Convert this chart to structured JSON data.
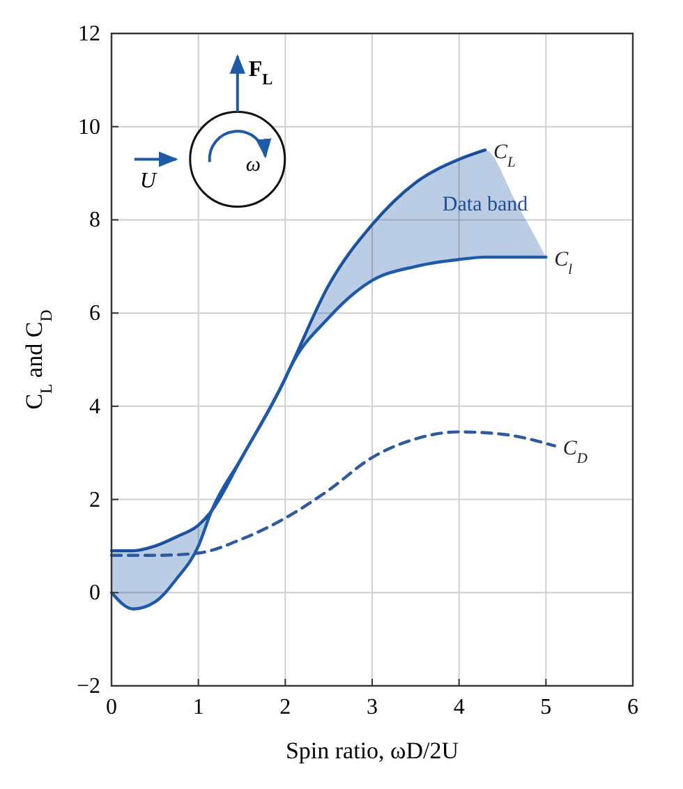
{
  "chart_data": {
    "type": "line",
    "xlabel": "Spin ratio, ωD/2U",
    "ylabel": "C$_{L}$ and C$_{D}$",
    "xlim": [
      0,
      6
    ],
    "xticks": [
      0,
      1,
      2,
      3,
      4,
      5,
      6
    ],
    "ylim": [
      -2,
      12
    ],
    "yticks": [
      {
        "value": -2,
        "label": "−2"
      },
      0,
      2,
      4,
      6,
      8,
      10,
      12
    ],
    "grid": true,
    "series": [
      {
        "name": "C$_{L}$",
        "color": "#1f5aa8",
        "line_style": "solid",
        "x": [
          0,
          0.25,
          0.5,
          0.75,
          1,
          1.15,
          1.5,
          2,
          2.05,
          2.5,
          3,
          3.5,
          4,
          4.3
        ],
        "values": [
          0.9,
          0.9,
          1.0,
          1.2,
          1.45,
          1.75,
          2.9,
          4.6,
          4.8,
          6.6,
          7.9,
          8.8,
          9.3,
          9.5
        ]
      },
      {
        "name": "C$_{l}$",
        "color": "#1f5aa8",
        "line_style": "solid",
        "x": [
          0,
          0.25,
          0.5,
          0.75,
          1,
          1.15,
          1.5,
          2,
          2.05,
          2.5,
          3,
          3.5,
          4,
          4.3,
          4.65,
          5
        ],
        "values": [
          0,
          -0.35,
          -0.2,
          0.3,
          1.0,
          1.75,
          2.9,
          4.6,
          4.8,
          5.9,
          6.7,
          7.0,
          7.15,
          7.2,
          7.2,
          7.2
        ],
        "lower": [
          0,
          -0.35,
          -0.2,
          0.3,
          1.0,
          1.75,
          2.9,
          4.6,
          4.8,
          5.9,
          6.7,
          7.0,
          7.15,
          7.2,
          7.2,
          7.2
        ],
        "upper": [
          0.9,
          0.9,
          1.0,
          1.2,
          1.45,
          1.75,
          2.9,
          4.6,
          4.8,
          6.6,
          7.9,
          8.8,
          9.3,
          9.5,
          8.4,
          7.2
        ]
      },
      {
        "name": "C$_{D}$",
        "color": "#2f5a9e",
        "line_style": "dashed",
        "x": [
          0,
          0.5,
          1,
          1.5,
          2,
          2.5,
          3,
          3.5,
          4,
          4.5,
          5.1
        ],
        "values": [
          0.8,
          0.8,
          0.85,
          1.15,
          1.6,
          2.2,
          2.9,
          3.3,
          3.45,
          3.4,
          3.15
        ]
      }
    ],
    "annotations": [
      "Data band",
      "F$_{L}$",
      "U",
      "ω"
    ]
  }
}
